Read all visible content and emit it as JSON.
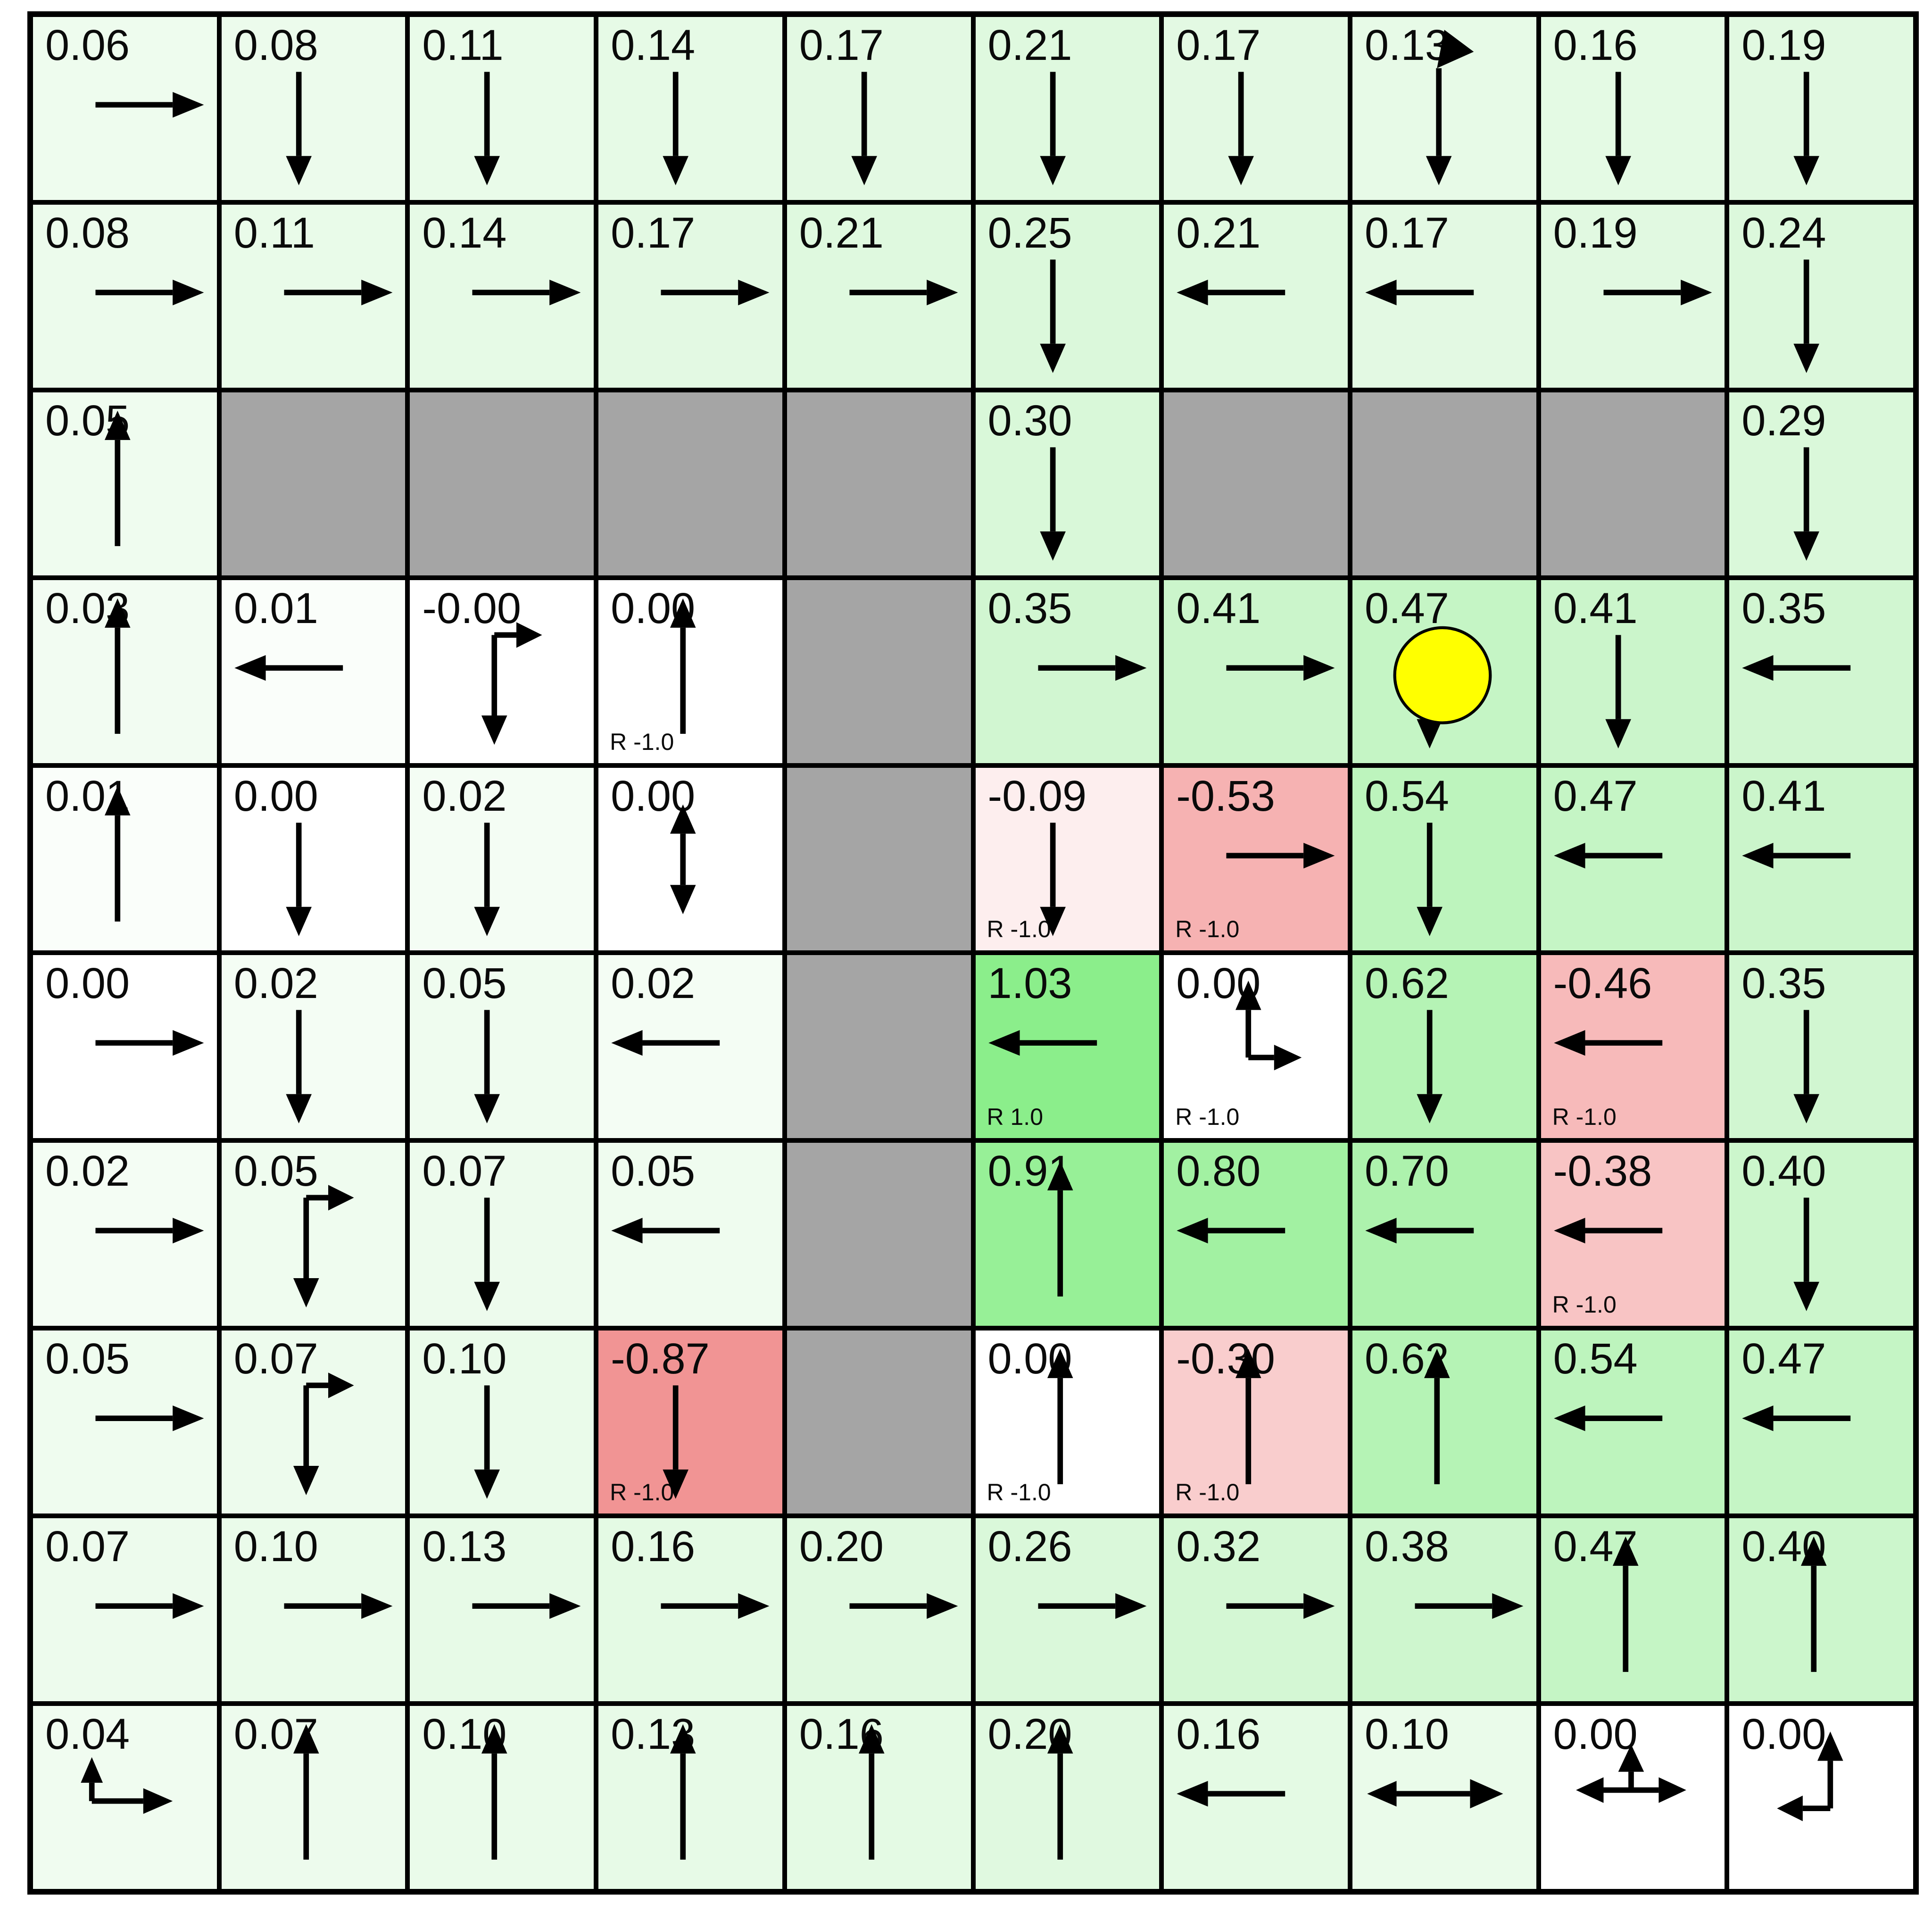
{
  "app": {
    "title": "Gridworld values and policy"
  },
  "grid": {
    "rows": 10,
    "cols": 10
  },
  "colors": {
    "grid_line": "#000000",
    "wall": "#a5a5a5",
    "text": "#0a0a0a",
    "arrow": "#000000",
    "agent_fill": "#ffff00",
    "agent_outline": "#000000",
    "positive_max": "#8bee8b",
    "negative_max": "#f19494",
    "zero": "#ffffff"
  },
  "agent": {
    "row": 3,
    "col": 7,
    "label": "agent"
  },
  "cells": [
    [
      {
        "v": "0.06",
        "a": "right",
        "bg": "#eefcee"
      },
      {
        "v": "0.08",
        "a": "down",
        "bg": "#ecfbec"
      },
      {
        "v": "0.11",
        "a": "down",
        "bg": "#e9fbe9"
      },
      {
        "v": "0.14",
        "a": "down",
        "bg": "#e6fae6"
      },
      {
        "v": "0.17",
        "a": "down",
        "bg": "#e3f9e3"
      },
      {
        "v": "0.21",
        "a": "down",
        "bg": "#dff9df"
      },
      {
        "v": "0.17",
        "a": "down",
        "bg": "#e3f9e3"
      },
      {
        "v": "0.13",
        "a": "du",
        "bg": "#e7fae7"
      },
      {
        "v": "0.16",
        "a": "down",
        "bg": "#e4fae4"
      },
      {
        "v": "0.19",
        "a": "down",
        "bg": "#e1f9e1"
      }
    ],
    [
      {
        "v": "0.08",
        "a": "right",
        "bg": "#ecfbec"
      },
      {
        "v": "0.11",
        "a": "right",
        "bg": "#e9fbe9"
      },
      {
        "v": "0.14",
        "a": "right",
        "bg": "#e6fae6"
      },
      {
        "v": "0.17",
        "a": "right",
        "bg": "#e3f9e3"
      },
      {
        "v": "0.21",
        "a": "right",
        "bg": "#dff9df"
      },
      {
        "v": "0.25",
        "a": "down",
        "bg": "#dbf8db"
      },
      {
        "v": "0.21",
        "a": "left",
        "bg": "#dff9df"
      },
      {
        "v": "0.17",
        "a": "left",
        "bg": "#e3f9e3"
      },
      {
        "v": "0.19",
        "a": "right",
        "bg": "#e1f9e1"
      },
      {
        "v": "0.24",
        "a": "down",
        "bg": "#dcf8dc"
      }
    ],
    [
      {
        "v": "0.05",
        "a": "up",
        "bg": "#effcef"
      },
      {
        "wall": true
      },
      {
        "wall": true
      },
      {
        "wall": true
      },
      {
        "wall": true
      },
      {
        "v": "0.30",
        "a": "down",
        "bg": "#d9f8d9"
      },
      {
        "wall": true
      },
      {
        "wall": true
      },
      {
        "wall": true
      },
      {
        "v": "0.29",
        "a": "down",
        "bg": "#daf8da"
      }
    ],
    [
      {
        "v": "0.03",
        "a": "up",
        "bg": "#f2fcf2"
      },
      {
        "v": "0.01",
        "a": "left",
        "bg": "#fafefa"
      },
      {
        "v": "-0.00",
        "a": "rd",
        "bg": "#ffffff"
      },
      {
        "v": "0.00",
        "a": "up",
        "bg": "#ffffff",
        "rw": "R -1.0"
      },
      {
        "wall": true
      },
      {
        "v": "0.35",
        "a": "right",
        "bg": "#d1f6d1"
      },
      {
        "v": "0.41",
        "a": "right",
        "bg": "#cbf5cb"
      },
      {
        "v": "0.47",
        "a": "down",
        "bg": "#c5f5c5",
        "agent": true
      },
      {
        "v": "0.41",
        "a": "down",
        "bg": "#cbf5cb"
      },
      {
        "v": "0.35",
        "a": "left",
        "bg": "#d1f6d1"
      }
    ],
    [
      {
        "v": "0.01",
        "a": "up",
        "bg": "#fafefa"
      },
      {
        "v": "0.00",
        "a": "down",
        "bg": "#ffffff"
      },
      {
        "v": "0.02",
        "a": "down",
        "bg": "#f4fdf4"
      },
      {
        "v": "0.00",
        "a": "ud",
        "bg": "#ffffff"
      },
      {
        "wall": true
      },
      {
        "v": "-0.09",
        "a": "down",
        "bg": "#fdeeee",
        "rw": "R -1.0"
      },
      {
        "v": "-0.53",
        "a": "right",
        "bg": "#f6b2b2",
        "rw": "R -1.0"
      },
      {
        "v": "0.54",
        "a": "down",
        "bg": "#bdf4bd"
      },
      {
        "v": "0.47",
        "a": "left",
        "bg": "#c5f5c5"
      },
      {
        "v": "0.41",
        "a": "left",
        "bg": "#cbf5cb"
      }
    ],
    [
      {
        "v": "0.00",
        "a": "right",
        "bg": "#ffffff"
      },
      {
        "v": "0.02",
        "a": "down",
        "bg": "#f4fdf4"
      },
      {
        "v": "0.05",
        "a": "down",
        "bg": "#effcef"
      },
      {
        "v": "0.02",
        "a": "left",
        "bg": "#f4fdf4"
      },
      {
        "wall": true
      },
      {
        "v": "1.03",
        "a": "left",
        "bg": "#8bee8b",
        "rw": "R 1.0"
      },
      {
        "v": "0.00",
        "a": "ur",
        "bg": "#ffffff",
        "rw": "R -1.0"
      },
      {
        "v": "0.62",
        "a": "down",
        "bg": "#b5f3b5"
      },
      {
        "v": "-0.46",
        "a": "left",
        "bg": "#f7baba",
        "rw": "R -1.0"
      },
      {
        "v": "0.35",
        "a": "down",
        "bg": "#d1f6d1"
      }
    ],
    [
      {
        "v": "0.02",
        "a": "right",
        "bg": "#f4fdf4"
      },
      {
        "v": "0.05",
        "a": "rd",
        "bg": "#effcef"
      },
      {
        "v": "0.07",
        "a": "down",
        "bg": "#edfbed"
      },
      {
        "v": "0.05",
        "a": "left",
        "bg": "#effcef"
      },
      {
        "wall": true
      },
      {
        "v": "0.91",
        "a": "up",
        "bg": "#97f097"
      },
      {
        "v": "0.80",
        "a": "left",
        "bg": "#a2f1a2"
      },
      {
        "v": "0.70",
        "a": "left",
        "bg": "#adf2ad"
      },
      {
        "v": "-0.38",
        "a": "left",
        "bg": "#f8c4c4",
        "rw": "R -1.0"
      },
      {
        "v": "0.40",
        "a": "down",
        "bg": "#ccf6cc"
      }
    ],
    [
      {
        "v": "0.05",
        "a": "right",
        "bg": "#effcef"
      },
      {
        "v": "0.07",
        "a": "rd",
        "bg": "#edfbed"
      },
      {
        "v": "0.10",
        "a": "down",
        "bg": "#eafbea"
      },
      {
        "v": "-0.87",
        "a": "down",
        "bg": "#f19494",
        "rw": "R -1.0"
      },
      {
        "wall": true
      },
      {
        "v": "0.00",
        "a": "up",
        "bg": "#ffffff",
        "rw": "R -1.0"
      },
      {
        "v": "-0.30",
        "a": "up",
        "bg": "#f9cdcd",
        "rw": "R -1.0"
      },
      {
        "v": "0.62",
        "a": "up",
        "bg": "#b5f3b5"
      },
      {
        "v": "0.54",
        "a": "left",
        "bg": "#bdf4bd"
      },
      {
        "v": "0.47",
        "a": "left",
        "bg": "#c5f5c5"
      }
    ],
    [
      {
        "v": "0.07",
        "a": "right",
        "bg": "#edfbed"
      },
      {
        "v": "0.10",
        "a": "right",
        "bg": "#eafbea"
      },
      {
        "v": "0.13",
        "a": "right",
        "bg": "#e7fae7"
      },
      {
        "v": "0.16",
        "a": "right",
        "bg": "#e4fae4"
      },
      {
        "v": "0.20",
        "a": "right",
        "bg": "#e0f9e0"
      },
      {
        "v": "0.26",
        "a": "right",
        "bg": "#daf8da"
      },
      {
        "v": "0.32",
        "a": "right",
        "bg": "#d4f7d4"
      },
      {
        "v": "0.38",
        "a": "right",
        "bg": "#cef6ce"
      },
      {
        "v": "0.47",
        "a": "up",
        "bg": "#c5f5c5"
      },
      {
        "v": "0.40",
        "a": "up",
        "bg": "#ccf6cc"
      }
    ],
    [
      {
        "v": "0.04",
        "a": "ur2",
        "bg": "#f0fcf0"
      },
      {
        "v": "0.07",
        "a": "up",
        "bg": "#edfbed"
      },
      {
        "v": "0.10",
        "a": "up",
        "bg": "#eafbea"
      },
      {
        "v": "0.13",
        "a": "up",
        "bg": "#e7fae7"
      },
      {
        "v": "0.16",
        "a": "up",
        "bg": "#e4fae4"
      },
      {
        "v": "0.20",
        "a": "up",
        "bg": "#e0f9e0"
      },
      {
        "v": "0.16",
        "a": "left",
        "bg": "#e4fae4"
      },
      {
        "v": "0.10",
        "a": "lr",
        "bg": "#eafbea"
      },
      {
        "v": "0.00",
        "a": "ulr",
        "bg": "#ffffff"
      },
      {
        "v": "0.00",
        "a": "ul",
        "bg": "#ffffff"
      }
    ]
  ]
}
